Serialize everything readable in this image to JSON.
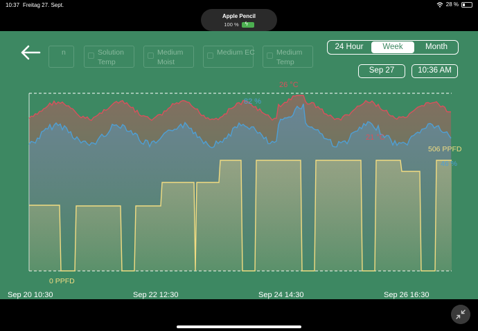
{
  "status_bar": {
    "time": "10:37",
    "date": "Freitag 27. Sept.",
    "battery": "28 %"
  },
  "pencil": {
    "title": "Apple Pencil",
    "level": "100 %"
  },
  "series_toggles": [
    {
      "label": "n"
    },
    {
      "label": "Solution Temp"
    },
    {
      "label": "Medium Moist"
    },
    {
      "label": "Medium EC"
    },
    {
      "label": "Medium Temp"
    }
  ],
  "range": {
    "options": [
      "24 Hour",
      "Week",
      "Month"
    ],
    "selected": "Week"
  },
  "picker": {
    "date": "Sep 27",
    "time": "10:36 AM"
  },
  "chart_data": {
    "type": "line",
    "x_labels": [
      "Sep 20 10:30",
      "Sep 22 12:30",
      "Sep 24 14:30",
      "Sep 26 16:30"
    ],
    "colors": {
      "temp": "#d9505c",
      "humidity": "#4f9fd4",
      "light": "#f1dc82"
    },
    "series": [
      {
        "name": "temp",
        "max_label": "26 °C",
        "min_label": "21 °C"
      },
      {
        "name": "humidity",
        "max_label": "82 %",
        "current_label": "46 %"
      },
      {
        "name": "light",
        "current_label": "506 PPFD",
        "min_label": "0 PPFD"
      }
    ]
  }
}
